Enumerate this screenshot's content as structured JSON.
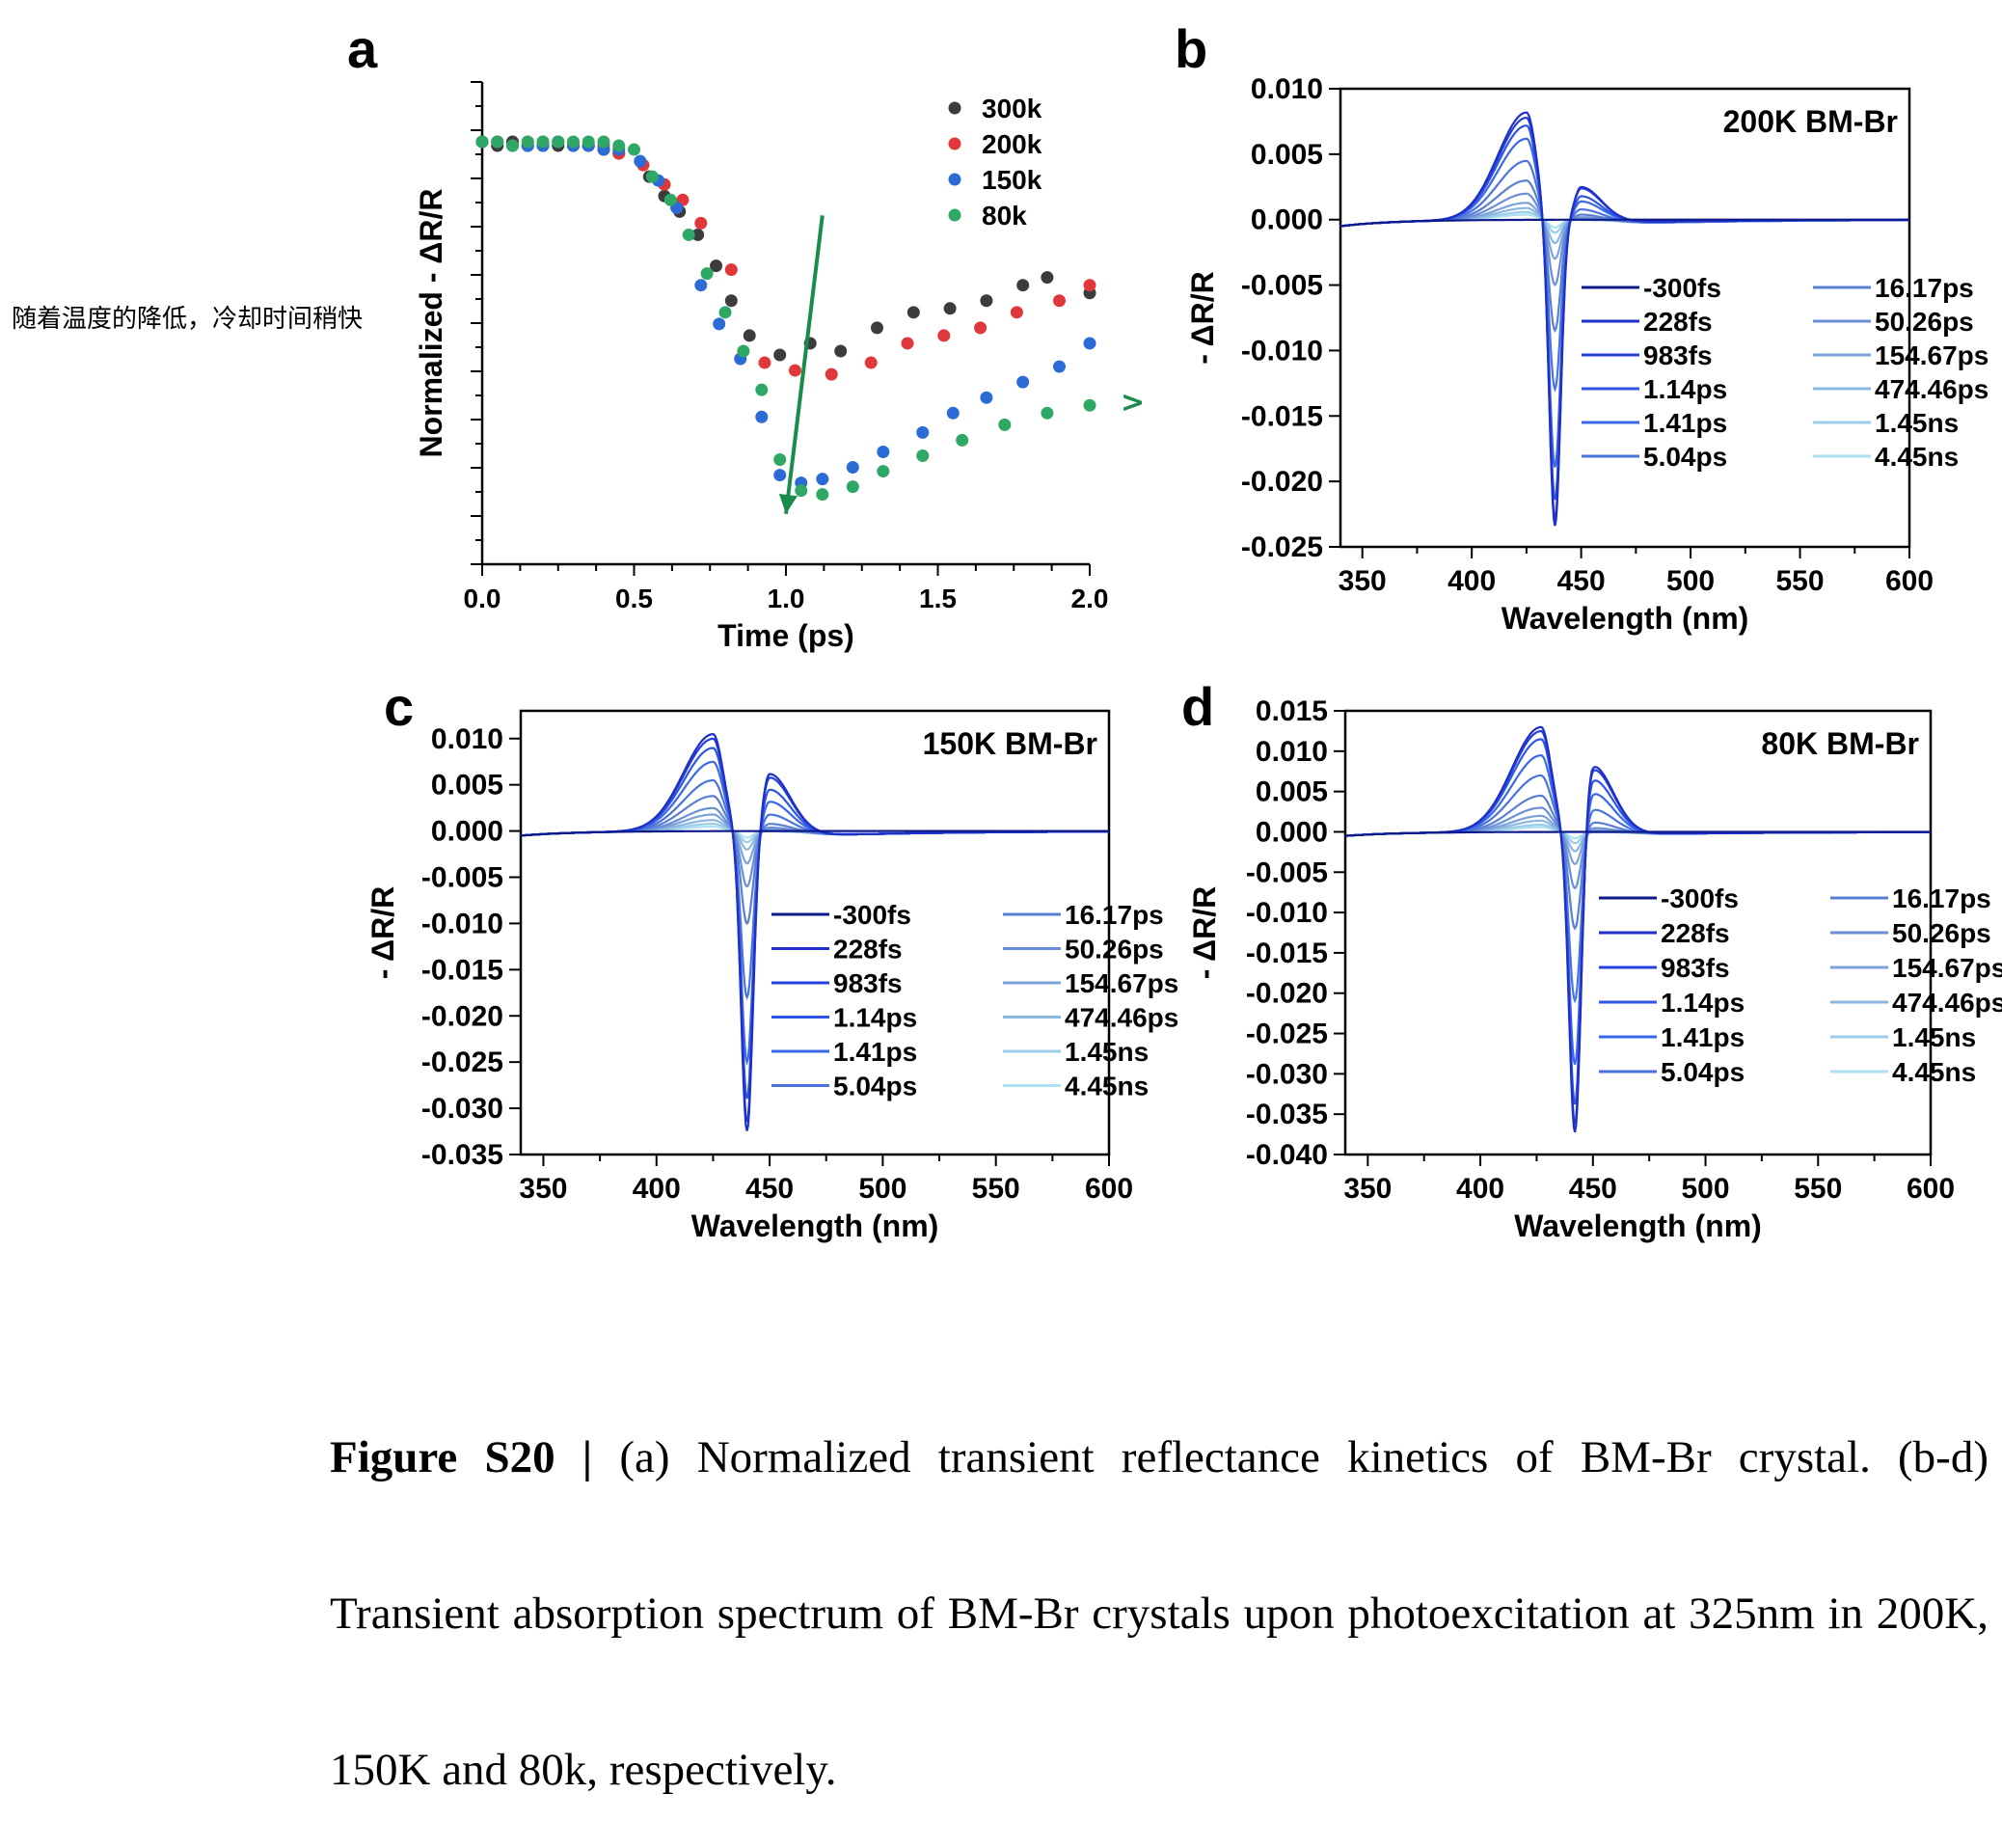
{
  "annotation_note": "随着温度的降低，冷却时间稍快",
  "annotation_marker": ">",
  "caption": {
    "label": "Figure S20 |",
    "text": " (a) Normalized transient reflectance kinetics of BM-Br crystal. (b-d) Transient absorption spectrum of BM-Br crystals upon photoexcitation at 325nm in 200K, 150K and 80k, respectively."
  },
  "chart_data": [
    {
      "panel": "a",
      "type": "scatter",
      "xlabel": "Time (ps)",
      "ylabel": "Normalized - ΔR/R",
      "xlim": [
        0,
        2.0
      ],
      "xticks": [
        "0.0",
        "0.5",
        "1.0",
        "1.5",
        "2.0"
      ],
      "ylim": [
        0,
        1.1
      ],
      "yticks_labeled": false,
      "legend_position": "top-right",
      "arrow": {
        "from": [
          1.12,
          0.2
        ],
        "to": [
          1.0,
          0.97
        ],
        "color": "#1a8c4a"
      },
      "series": [
        {
          "name": "300k",
          "color": "#3c3c3c",
          "x": [
            0.0,
            0.05,
            0.1,
            0.15,
            0.2,
            0.25,
            0.3,
            0.35,
            0.4,
            0.45,
            0.55,
            0.6,
            0.65,
            0.71,
            0.77,
            0.82,
            0.88,
            0.98,
            1.08,
            1.18,
            1.3,
            1.42,
            1.54,
            1.66,
            1.78,
            1.86,
            2.0
          ],
          "y": [
            0.01,
            0.02,
            0.01,
            0.02,
            0.02,
            0.02,
            0.02,
            0.02,
            0.03,
            0.04,
            0.1,
            0.15,
            0.19,
            0.25,
            0.33,
            0.42,
            0.51,
            0.56,
            0.53,
            0.55,
            0.49,
            0.45,
            0.44,
            0.42,
            0.38,
            0.36,
            0.4
          ]
        },
        {
          "name": "200k",
          "color": "#e0383a",
          "x": [
            0.0,
            0.05,
            0.1,
            0.15,
            0.2,
            0.25,
            0.3,
            0.35,
            0.4,
            0.45,
            0.53,
            0.6,
            0.66,
            0.72,
            0.82,
            0.93,
            1.03,
            1.15,
            1.28,
            1.4,
            1.52,
            1.64,
            1.76,
            1.9,
            2.0
          ],
          "y": [
            0.01,
            0.01,
            0.02,
            0.01,
            0.01,
            0.01,
            0.02,
            0.02,
            0.02,
            0.04,
            0.07,
            0.12,
            0.16,
            0.22,
            0.34,
            0.58,
            0.6,
            0.61,
            0.58,
            0.53,
            0.51,
            0.49,
            0.45,
            0.42,
            0.38
          ]
        },
        {
          "name": "150k",
          "color": "#2b6bd6",
          "x": [
            0.0,
            0.05,
            0.1,
            0.15,
            0.2,
            0.25,
            0.3,
            0.35,
            0.4,
            0.45,
            0.52,
            0.58,
            0.64,
            0.72,
            0.78,
            0.85,
            0.92,
            0.98,
            1.05,
            1.12,
            1.22,
            1.32,
            1.45,
            1.55,
            1.66,
            1.78,
            1.9,
            2.0
          ],
          "y": [
            0.01,
            0.01,
            0.02,
            0.02,
            0.02,
            0.01,
            0.02,
            0.02,
            0.03,
            0.03,
            0.06,
            0.11,
            0.18,
            0.38,
            0.48,
            0.57,
            0.72,
            0.87,
            0.89,
            0.88,
            0.85,
            0.81,
            0.76,
            0.71,
            0.67,
            0.63,
            0.59,
            0.53
          ]
        },
        {
          "name": "80k",
          "color": "#2fa865",
          "x": [
            0.0,
            0.05,
            0.1,
            0.15,
            0.2,
            0.25,
            0.3,
            0.35,
            0.4,
            0.45,
            0.5,
            0.56,
            0.62,
            0.68,
            0.74,
            0.8,
            0.86,
            0.92,
            0.98,
            1.05,
            1.12,
            1.22,
            1.32,
            1.45,
            1.58,
            1.72,
            1.86,
            2.0
          ],
          "y": [
            0.01,
            0.01,
            0.02,
            0.01,
            0.01,
            0.01,
            0.01,
            0.01,
            0.01,
            0.02,
            0.03,
            0.1,
            0.16,
            0.25,
            0.35,
            0.45,
            0.55,
            0.65,
            0.83,
            0.91,
            0.92,
            0.9,
            0.86,
            0.82,
            0.78,
            0.74,
            0.71,
            0.69
          ]
        }
      ]
    },
    {
      "panel": "b",
      "type": "line",
      "title": "200K BM-Br",
      "xlabel": "Wavelength (nm)",
      "ylabel": "- ΔR/R",
      "xlim": [
        340,
        600
      ],
      "xticks": [
        "350",
        "400",
        "450",
        "500",
        "550",
        "600"
      ],
      "ylim": [
        -0.025,
        0.01
      ],
      "yticks": [
        "0.010",
        "0.005",
        "0.000",
        "-0.005",
        "-0.010",
        "-0.015",
        "-0.020",
        "-0.025"
      ],
      "legend": [
        "-300fs",
        "228fs",
        "983fs",
        "1.14ps",
        "1.41ps",
        "5.04ps",
        "16.17ps",
        "50.26ps",
        "154.67ps",
        "474.46ps",
        "1.45ns",
        "4.45ns"
      ],
      "peak_positions_nm": [
        425,
        438,
        450
      ],
      "series_amplitudes": [
        {
          "name": "-300fs",
          "pos": 0.0,
          "neg": 0.0,
          "pos2": 0.0,
          "tail": 0.0
        },
        {
          "name": "228fs",
          "pos": 0.0082,
          "neg": 0.0235,
          "pos2": 0.0025,
          "tail": -0.0002
        },
        {
          "name": "983fs",
          "pos": 0.0078,
          "neg": 0.023,
          "pos2": 0.0024,
          "tail": -0.0002
        },
        {
          "name": "1.14ps",
          "pos": 0.0072,
          "neg": 0.0215,
          "pos2": 0.0018,
          "tail": -0.0002
        },
        {
          "name": "1.41ps",
          "pos": 0.0062,
          "neg": 0.019,
          "pos2": 0.0014,
          "tail": -0.0002
        },
        {
          "name": "5.04ps",
          "pos": 0.0045,
          "neg": 0.013,
          "pos2": 0.0008,
          "tail": -0.0003
        },
        {
          "name": "16.17ps",
          "pos": 0.003,
          "neg": 0.0085,
          "pos2": 0.0004,
          "tail": -0.0003
        },
        {
          "name": "50.26ps",
          "pos": 0.002,
          "neg": 0.005,
          "pos2": 0.0002,
          "tail": -0.0003
        },
        {
          "name": "154.67ps",
          "pos": 0.0013,
          "neg": 0.003,
          "pos2": 0.0001,
          "tail": -0.0003
        },
        {
          "name": "474.46ps",
          "pos": 0.0009,
          "neg": 0.0018,
          "pos2": 0.0,
          "tail": -0.0003
        },
        {
          "name": "1.45ns",
          "pos": 0.0006,
          "neg": 0.001,
          "pos2": 0.0,
          "tail": -0.0003
        },
        {
          "name": "4.45ns",
          "pos": 0.0004,
          "neg": 0.0006,
          "pos2": 0.0,
          "tail": -0.0003
        }
      ]
    },
    {
      "panel": "c",
      "type": "line",
      "title": "150K BM-Br",
      "xlabel": "Wavelength (nm)",
      "ylabel": "- ΔR/R",
      "xlim": [
        340,
        600
      ],
      "xticks": [
        "350",
        "400",
        "450",
        "500",
        "550",
        "600"
      ],
      "ylim": [
        -0.035,
        0.013
      ],
      "yticks": [
        "0.010",
        "0.005",
        "0.000",
        "-0.005",
        "-0.010",
        "-0.015",
        "-0.020",
        "-0.025",
        "-0.030",
        "-0.035"
      ],
      "legend": [
        "-300fs",
        "228fs",
        "983fs",
        "1.14ps",
        "1.41ps",
        "5.04ps",
        "16.17ps",
        "50.26ps",
        "154.67ps",
        "474.46ps",
        "1.45ns",
        "4.45ns"
      ],
      "peak_positions_nm": [
        425,
        440,
        450
      ],
      "series_amplitudes": [
        {
          "name": "-300fs",
          "pos": 0.0,
          "neg": 0.0,
          "pos2": 0.0,
          "tail": 0.0
        },
        {
          "name": "228fs",
          "pos": 0.0105,
          "neg": 0.0325,
          "pos2": 0.0062,
          "tail": -0.0005
        },
        {
          "name": "983fs",
          "pos": 0.01,
          "neg": 0.0315,
          "pos2": 0.0058,
          "tail": -0.0005
        },
        {
          "name": "1.14ps",
          "pos": 0.009,
          "neg": 0.029,
          "pos2": 0.0045,
          "tail": -0.0005
        },
        {
          "name": "1.41ps",
          "pos": 0.0075,
          "neg": 0.025,
          "pos2": 0.0032,
          "tail": -0.0005
        },
        {
          "name": "5.04ps",
          "pos": 0.0055,
          "neg": 0.018,
          "pos2": 0.0018,
          "tail": -0.0005
        },
        {
          "name": "16.17ps",
          "pos": 0.0038,
          "neg": 0.01,
          "pos2": 0.0008,
          "tail": -0.0005
        },
        {
          "name": "50.26ps",
          "pos": 0.0025,
          "neg": 0.006,
          "pos2": 0.0004,
          "tail": -0.0005
        },
        {
          "name": "154.67ps",
          "pos": 0.0018,
          "neg": 0.0035,
          "pos2": 0.0002,
          "tail": -0.0005
        },
        {
          "name": "474.46ps",
          "pos": 0.0012,
          "neg": 0.002,
          "pos2": 0.0,
          "tail": -0.0005
        },
        {
          "name": "1.45ns",
          "pos": 0.0008,
          "neg": 0.0012,
          "pos2": 0.0,
          "tail": -0.0005
        },
        {
          "name": "4.45ns",
          "pos": 0.0005,
          "neg": 0.0007,
          "pos2": 0.0,
          "tail": -0.0005
        }
      ]
    },
    {
      "panel": "d",
      "type": "line",
      "title": "80K BM-Br",
      "xlabel": "Wavelength (nm)",
      "ylabel": "- ΔR/R",
      "xlim": [
        340,
        600
      ],
      "xticks": [
        "350",
        "400",
        "450",
        "500",
        "550",
        "600"
      ],
      "ylim": [
        -0.04,
        0.015
      ],
      "yticks": [
        "0.015",
        "0.010",
        "0.005",
        "0.000",
        "-0.005",
        "-0.010",
        "-0.015",
        "-0.020",
        "-0.025",
        "-0.030",
        "-0.035",
        "-0.040"
      ],
      "legend": [
        "-300fs",
        "228fs",
        "983fs",
        "1.14ps",
        "1.41ps",
        "5.04ps",
        "16.17ps",
        "50.26ps",
        "154.67ps",
        "474.46ps",
        "1.45ns",
        "4.45ns"
      ],
      "peak_positions_nm": [
        427,
        442,
        450
      ],
      "series_amplitudes": [
        {
          "name": "-300fs",
          "pos": 0.0,
          "neg": 0.0,
          "pos2": 0.0,
          "tail": 0.0
        },
        {
          "name": "228fs",
          "pos": 0.013,
          "neg": 0.0375,
          "pos2": 0.0082,
          "tail": -0.0003
        },
        {
          "name": "983fs",
          "pos": 0.0125,
          "neg": 0.0365,
          "pos2": 0.0078,
          "tail": -0.0003
        },
        {
          "name": "1.14ps",
          "pos": 0.0115,
          "neg": 0.034,
          "pos2": 0.0065,
          "tail": -0.0003
        },
        {
          "name": "1.41ps",
          "pos": 0.0095,
          "neg": 0.029,
          "pos2": 0.0048,
          "tail": -0.0003
        },
        {
          "name": "5.04ps",
          "pos": 0.007,
          "neg": 0.021,
          "pos2": 0.0028,
          "tail": -0.0003
        },
        {
          "name": "16.17ps",
          "pos": 0.0045,
          "neg": 0.012,
          "pos2": 0.0012,
          "tail": -0.0003
        },
        {
          "name": "50.26ps",
          "pos": 0.003,
          "neg": 0.007,
          "pos2": 0.0005,
          "tail": -0.0003
        },
        {
          "name": "154.67ps",
          "pos": 0.002,
          "neg": 0.004,
          "pos2": 0.0002,
          "tail": -0.0003
        },
        {
          "name": "474.46ps",
          "pos": 0.0014,
          "neg": 0.0024,
          "pos2": 0.0,
          "tail": -0.0003
        },
        {
          "name": "1.45ns",
          "pos": 0.0009,
          "neg": 0.0014,
          "pos2": 0.0,
          "tail": -0.0003
        },
        {
          "name": "4.45ns",
          "pos": 0.0006,
          "neg": 0.0008,
          "pos2": 0.0,
          "tail": -0.0003
        }
      ]
    }
  ]
}
